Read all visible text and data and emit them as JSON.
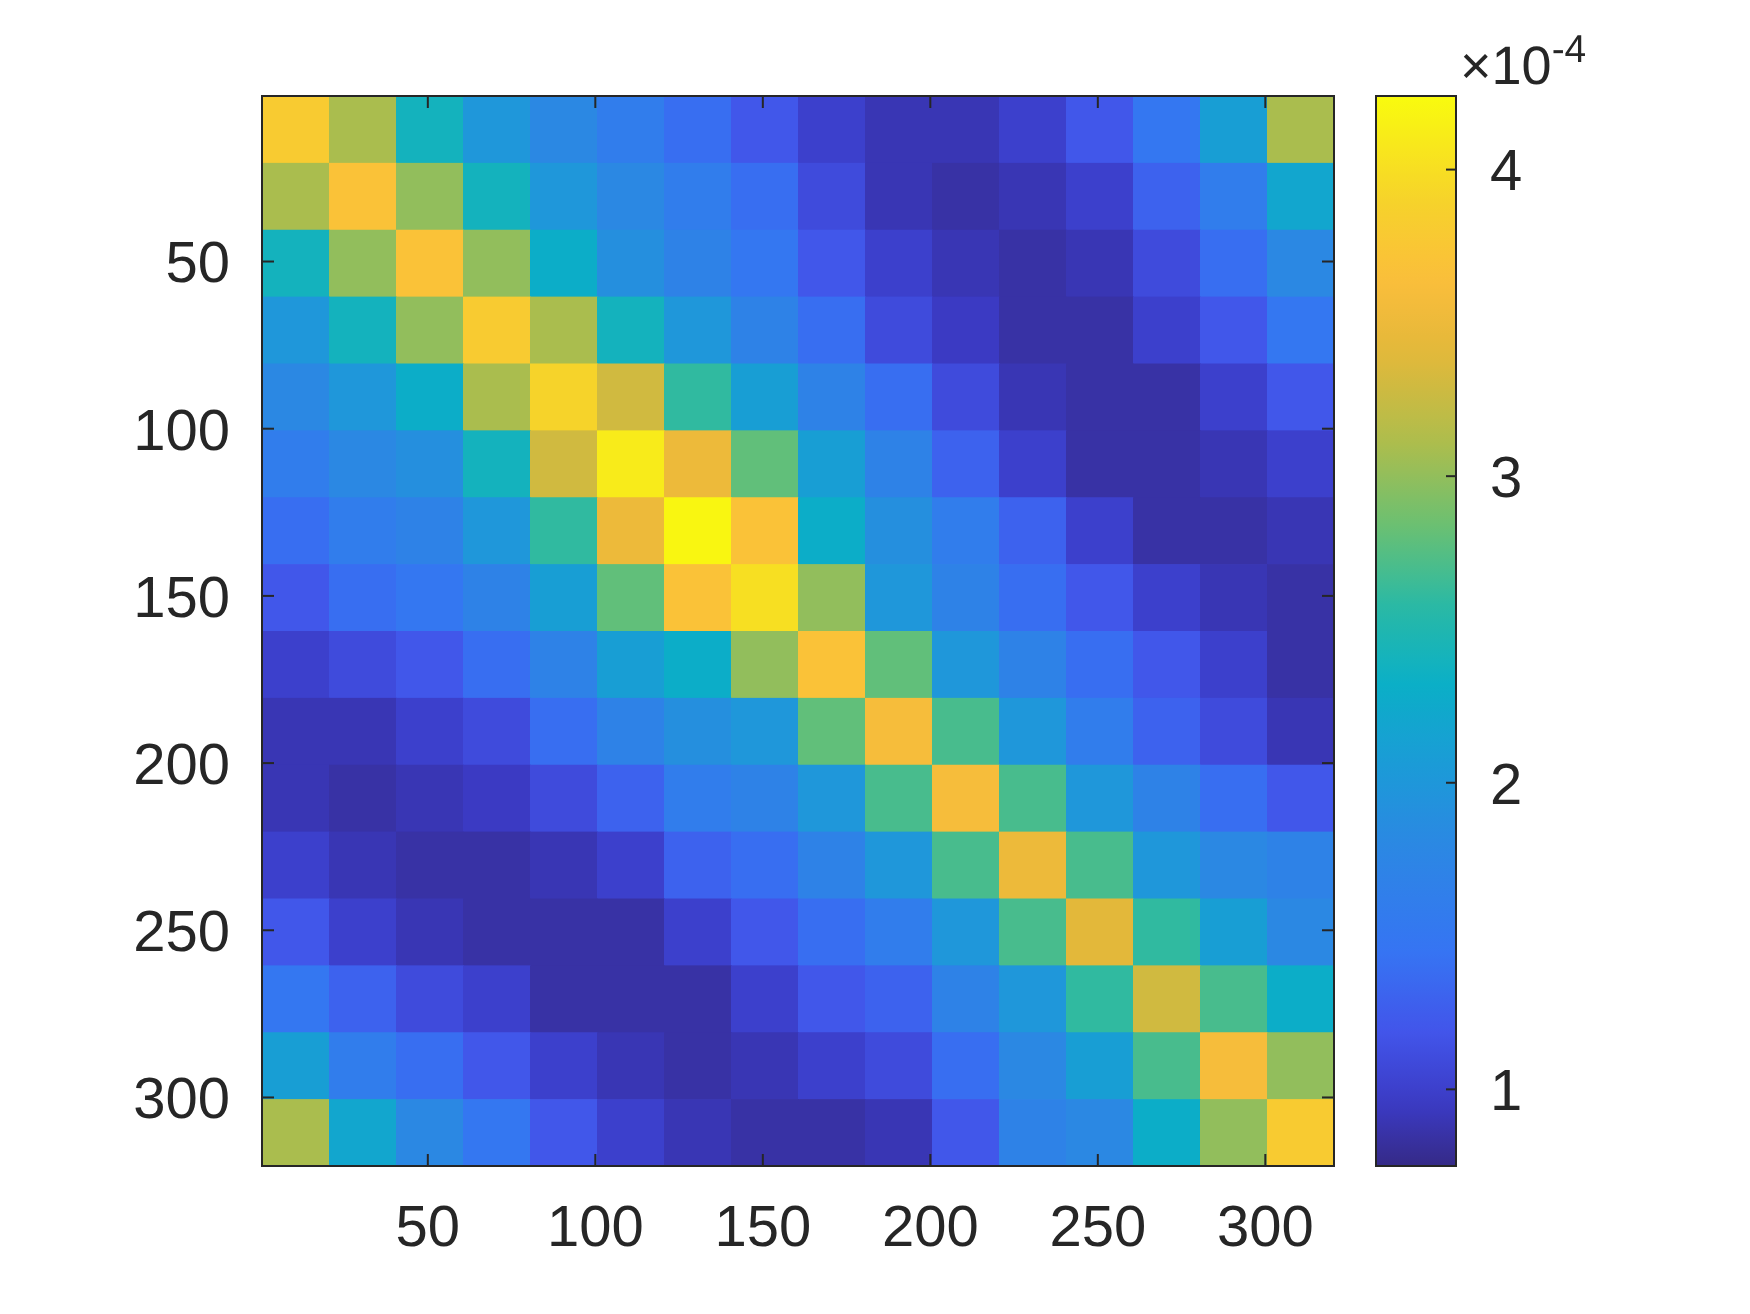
{
  "chart_data": {
    "type": "heatmap",
    "x": [
      10.5,
      30.5,
      50.5,
      70.5,
      90.5,
      110.5,
      130.5,
      150.5,
      170.5,
      190.5,
      210.5,
      230.5,
      250.5,
      270.5,
      290.5,
      310.5
    ],
    "y": [
      10.5,
      30.5,
      50.5,
      70.5,
      90.5,
      110.5,
      130.5,
      150.5,
      170.5,
      190.5,
      210.5,
      230.5,
      250.5,
      270.5,
      290.5,
      310.5
    ],
    "xlim": [
      0.5,
      320.5
    ],
    "ylim": [
      320.5,
      0.5
    ],
    "xticks": [
      50,
      100,
      150,
      200,
      250,
      300
    ],
    "yticks": [
      50,
      100,
      150,
      200,
      250,
      300
    ],
    "clim": [
      0.75,
      4.24
    ],
    "cticks": [
      1,
      2,
      3,
      4
    ],
    "clabel": "×10$^{-4}$",
    "cells": [
      [
        3.8,
        3.1,
        2.4,
        2.0,
        1.8,
        1.6,
        1.4,
        1.2,
        1.0,
        0.9,
        0.9,
        1.0,
        1.2,
        1.5,
        2.1,
        3.1
      ],
      [
        3.1,
        3.7,
        3.0,
        2.4,
        2.0,
        1.8,
        1.6,
        1.4,
        1.1,
        0.9,
        0.85,
        0.9,
        1.0,
        1.3,
        1.6,
        2.2
      ],
      [
        2.4,
        3.0,
        3.7,
        3.0,
        2.3,
        1.9,
        1.7,
        1.5,
        1.2,
        1.0,
        0.9,
        0.85,
        0.9,
        1.1,
        1.4,
        1.8
      ],
      [
        2.0,
        2.4,
        3.0,
        3.8,
        3.1,
        2.4,
        2.0,
        1.7,
        1.4,
        1.1,
        0.95,
        0.85,
        0.85,
        1.0,
        1.2,
        1.5
      ],
      [
        1.8,
        2.0,
        2.3,
        3.1,
        3.9,
        3.3,
        2.6,
        2.1,
        1.7,
        1.4,
        1.1,
        0.9,
        0.85,
        0.85,
        1.0,
        1.2
      ],
      [
        1.6,
        1.8,
        1.9,
        2.4,
        3.3,
        4.1,
        3.5,
        2.8,
        2.1,
        1.7,
        1.3,
        1.0,
        0.85,
        0.85,
        0.9,
        1.0
      ],
      [
        1.4,
        1.6,
        1.7,
        2.0,
        2.6,
        3.5,
        4.2,
        3.7,
        2.3,
        1.9,
        1.6,
        1.3,
        1.0,
        0.85,
        0.85,
        0.9
      ],
      [
        1.2,
        1.4,
        1.5,
        1.7,
        2.1,
        2.8,
        3.7,
        4.0,
        3.0,
        2.0,
        1.7,
        1.4,
        1.2,
        1.0,
        0.9,
        0.85
      ],
      [
        1.0,
        1.1,
        1.2,
        1.4,
        1.7,
        2.1,
        2.3,
        3.0,
        3.7,
        2.8,
        2.0,
        1.7,
        1.4,
        1.2,
        1.0,
        0.85
      ],
      [
        0.9,
        0.9,
        1.0,
        1.1,
        1.4,
        1.7,
        1.9,
        2.0,
        2.8,
        3.6,
        2.7,
        2.0,
        1.6,
        1.3,
        1.1,
        0.9
      ],
      [
        0.9,
        0.85,
        0.9,
        0.95,
        1.1,
        1.3,
        1.6,
        1.7,
        2.0,
        2.7,
        3.6,
        2.7,
        2.0,
        1.7,
        1.4,
        1.2
      ],
      [
        1.0,
        0.9,
        0.85,
        0.85,
        0.9,
        1.0,
        1.3,
        1.4,
        1.7,
        2.0,
        2.7,
        3.5,
        2.7,
        2.0,
        1.8,
        1.7
      ],
      [
        1.2,
        1.0,
        0.9,
        0.85,
        0.85,
        0.85,
        1.0,
        1.2,
        1.4,
        1.6,
        2.0,
        2.7,
        3.4,
        2.6,
        2.1,
        1.8
      ],
      [
        1.5,
        1.3,
        1.1,
        1.0,
        0.85,
        0.85,
        0.85,
        1.0,
        1.2,
        1.3,
        1.7,
        2.0,
        2.6,
        3.3,
        2.7,
        2.3
      ],
      [
        2.1,
        1.6,
        1.4,
        1.2,
        1.0,
        0.9,
        0.85,
        0.9,
        1.0,
        1.1,
        1.4,
        1.8,
        2.1,
        2.7,
        3.6,
        3.0
      ],
      [
        3.1,
        2.2,
        1.8,
        1.5,
        1.2,
        1.0,
        0.9,
        0.85,
        0.85,
        0.9,
        1.2,
        1.7,
        1.8,
        2.3,
        3.0,
        3.8
      ]
    ]
  }
}
